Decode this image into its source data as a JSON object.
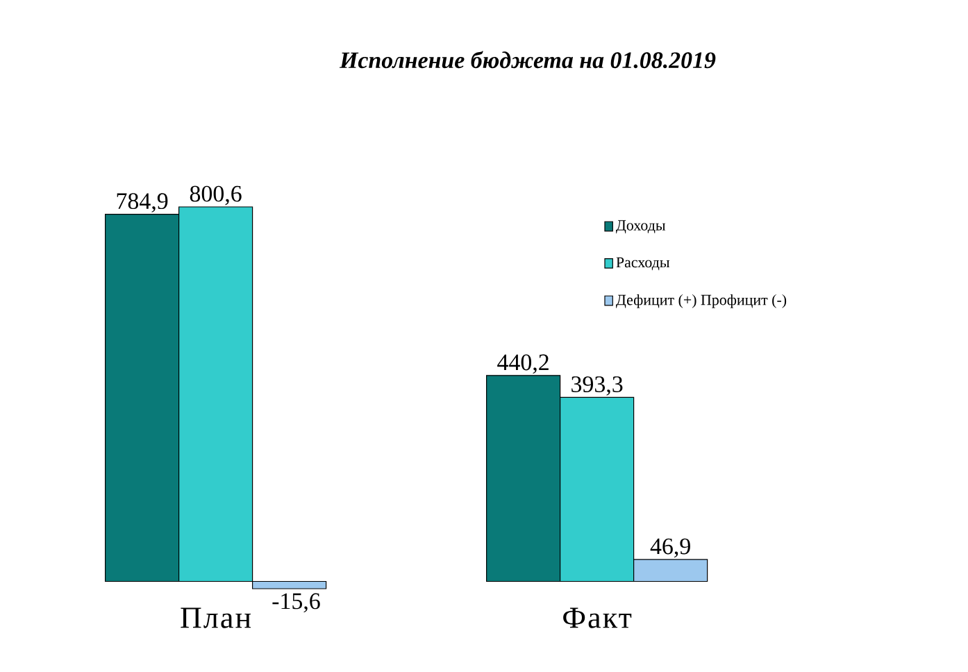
{
  "chart_data": {
    "type": "bar",
    "title": "Исполнение бюджета на 01.08.2019",
    "categories": [
      "План",
      "Факт"
    ],
    "series": [
      {
        "name": "Доходы",
        "color": "#0a7a78",
        "values": [
          784.9,
          440.2
        ],
        "value_labels": [
          "784,9",
          "440,2"
        ]
      },
      {
        "name": "Расходы",
        "color": "#33cccc",
        "values": [
          800.6,
          393.3
        ],
        "value_labels": [
          "800,6",
          "393,3"
        ]
      },
      {
        "name": "Дефицит (+) Профицит (-)",
        "color": "#9cc8ee",
        "values": [
          -15.6,
          46.9
        ],
        "value_labels": [
          "-15,6",
          "46,9"
        ]
      }
    ],
    "legend": "top right",
    "relative": false
  }
}
